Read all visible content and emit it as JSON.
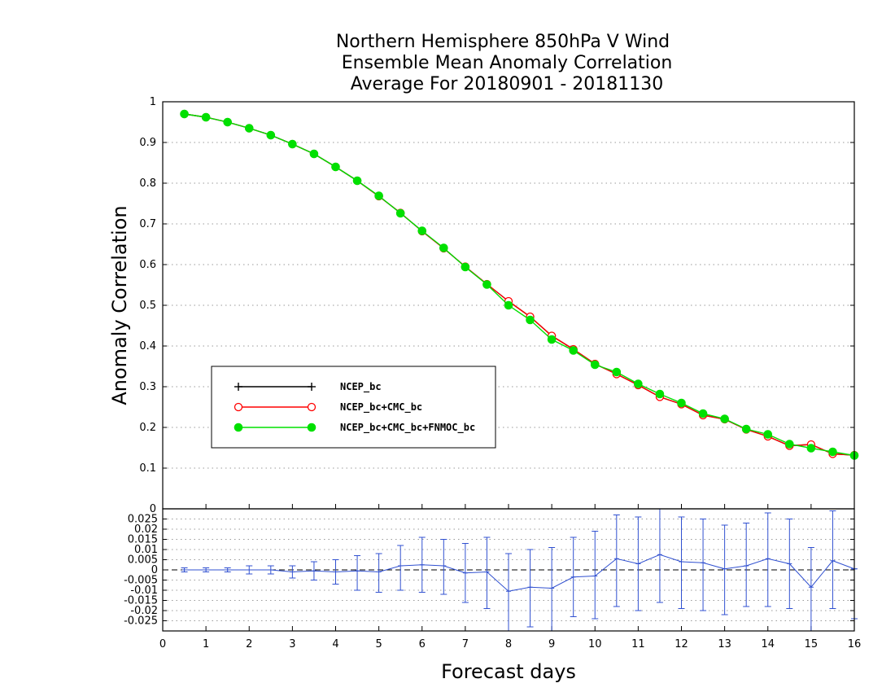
{
  "chart_data": {
    "type": "line",
    "title": [
      "Northern Hemisphere 850hPa V Wind",
      "Ensemble Mean Anomaly Correlation",
      "Average For 20180901 - 20181130"
    ],
    "xlabel": "Forecast days",
    "ylabel": "Anomaly Correlation",
    "xlim": [
      0,
      16
    ],
    "ylim": [
      0,
      1
    ],
    "x_ticks": [
      "0",
      "1",
      "2",
      "3",
      "4",
      "5",
      "6",
      "7",
      "8",
      "9",
      "10",
      "11",
      "12",
      "13",
      "14",
      "15",
      "16"
    ],
    "y_ticks": [
      "0.1",
      "0.2",
      "0.3",
      "0.4",
      "0.5",
      "0.6",
      "0.7",
      "0.8",
      "0.9",
      "1"
    ],
    "x": [
      0.5,
      1,
      1.5,
      2,
      2.5,
      3,
      3.5,
      4,
      4.5,
      5,
      5.5,
      6,
      6.5,
      7,
      7.5,
      8,
      8.5,
      9,
      9.5,
      10,
      10.5,
      11,
      11.5,
      12,
      12.5,
      13,
      13.5,
      14,
      14.5,
      15,
      15.5,
      16
    ],
    "series": [
      {
        "name": "NCEP_bc",
        "color": "#000000",
        "marker": "plus",
        "values": [
          0.97,
          0.962,
          0.95,
          0.935,
          0.918,
          0.896,
          0.872,
          0.84,
          0.806,
          0.768,
          0.727,
          0.682,
          0.64,
          0.595,
          0.552,
          0.51,
          0.472,
          0.425,
          0.392,
          0.356,
          0.331,
          0.304,
          0.275,
          0.257,
          0.23,
          0.22,
          0.195,
          0.178,
          0.155,
          0.158,
          0.135,
          0.132
        ]
      },
      {
        "name": "NCEP_bc+CMC_bc",
        "color": "#ff0000",
        "marker": "open-circle",
        "values": [
          0.97,
          0.962,
          0.95,
          0.935,
          0.918,
          0.896,
          0.872,
          0.84,
          0.806,
          0.768,
          0.727,
          0.682,
          0.64,
          0.595,
          0.552,
          0.51,
          0.472,
          0.425,
          0.392,
          0.356,
          0.331,
          0.304,
          0.275,
          0.257,
          0.23,
          0.22,
          0.195,
          0.178,
          0.155,
          0.158,
          0.135,
          0.132
        ]
      },
      {
        "name": "NCEP_bc+CMC_bc+FNMOC_bc",
        "color": "#00e000",
        "marker": "filled-circle",
        "values": [
          0.97,
          0.962,
          0.95,
          0.935,
          0.918,
          0.896,
          0.872,
          0.84,
          0.806,
          0.769,
          0.726,
          0.683,
          0.641,
          0.594,
          0.551,
          0.5,
          0.464,
          0.416,
          0.389,
          0.354,
          0.336,
          0.307,
          0.282,
          0.26,
          0.234,
          0.221,
          0.196,
          0.183,
          0.159,
          0.149,
          0.14,
          0.131
        ]
      }
    ],
    "legend_position": "lower-left",
    "grid": true,
    "difference_panel": {
      "ylim": [
        -0.03,
        0.03
      ],
      "y_ticks": [
        "-0.025",
        "-0.02",
        "-0.015",
        "-0.01",
        "-0.005",
        "0",
        "0.005",
        "0.01",
        "0.015",
        "0.02",
        "0.025"
      ],
      "color": "#3050d0",
      "values": [
        0.0,
        0.0,
        0.0,
        0.0,
        0.0,
        -0.001,
        -0.0005,
        -0.001,
        -0.0005,
        -0.001,
        0.002,
        0.0025,
        0.002,
        -0.0015,
        -0.001,
        -0.0105,
        -0.0085,
        -0.009,
        -0.0035,
        -0.003,
        0.0055,
        0.003,
        0.0075,
        0.004,
        0.0035,
        0.0005,
        0.002,
        0.0055,
        0.003,
        -0.0085,
        0.0045,
        0.0005
      ],
      "error_upper": [
        0.001,
        0.001,
        0.001,
        0.002,
        0.002,
        0.002,
        0.004,
        0.005,
        0.007,
        0.008,
        0.012,
        0.016,
        0.015,
        0.013,
        0.016,
        0.008,
        0.01,
        0.011,
        0.016,
        0.019,
        0.027,
        0.026,
        0.031,
        0.026,
        0.025,
        0.022,
        0.023,
        0.028,
        0.025,
        0.011,
        0.029,
        0.0005
      ],
      "error_lower": [
        -0.001,
        -0.001,
        -0.001,
        -0.002,
        -0.002,
        -0.004,
        -0.005,
        -0.007,
        -0.01,
        -0.011,
        -0.01,
        -0.011,
        -0.012,
        -0.016,
        -0.019,
        -0.032,
        -0.028,
        -0.03,
        -0.023,
        -0.024,
        -0.018,
        -0.02,
        -0.016,
        -0.019,
        -0.02,
        -0.022,
        -0.018,
        -0.018,
        -0.019,
        -0.03,
        -0.019,
        -0.024
      ]
    }
  }
}
